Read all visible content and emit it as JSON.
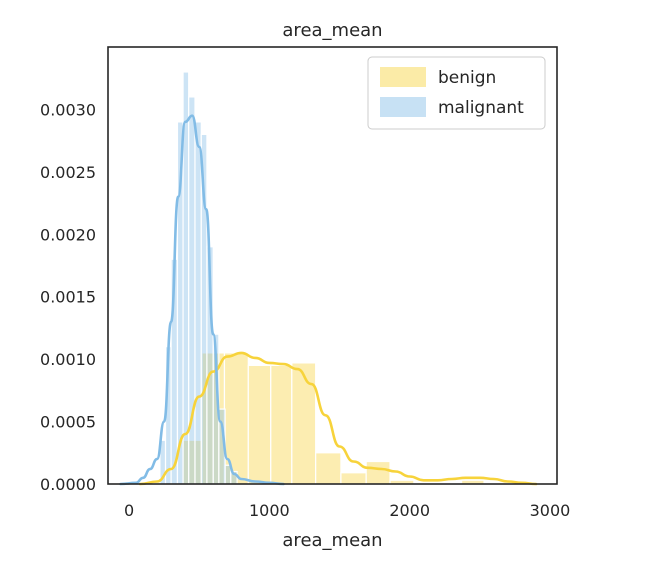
{
  "chart_data": {
    "type": "histogram-kde",
    "title": "area_mean",
    "xlabel": "area_mean",
    "ylabel": "",
    "xlim": [
      -150,
      3050
    ],
    "ylim": [
      0,
      0.0035
    ],
    "xticks": [
      0,
      1000,
      2000,
      3000
    ],
    "xtick_labels": [
      "0",
      "1000",
      "2000",
      "3000"
    ],
    "yticks": [
      0,
      0.0005,
      0.001,
      0.0015,
      0.002,
      0.0025,
      0.003
    ],
    "ytick_labels": [
      "0.0000",
      "0.0005",
      "0.0010",
      "0.0015",
      "0.0020",
      "0.0025",
      "0.0030"
    ],
    "grid": false,
    "legend_position": "upper right",
    "series": [
      {
        "name": "benign",
        "color": "#f7d33b",
        "bins": [
          {
            "x0": 380,
            "x1": 520,
            "density": 0.00035
          },
          {
            "x0": 520,
            "x1": 680,
            "density": 0.00105
          },
          {
            "x0": 680,
            "x1": 850,
            "density": 0.00105
          },
          {
            "x0": 850,
            "x1": 1010,
            "density": 0.00095
          },
          {
            "x0": 1010,
            "x1": 1160,
            "density": 0.00095
          },
          {
            "x0": 1160,
            "x1": 1330,
            "density": 0.00097
          },
          {
            "x0": 1330,
            "x1": 1510,
            "density": 0.00025
          },
          {
            "x0": 1510,
            "x1": 1690,
            "density": 9e-05
          },
          {
            "x0": 1690,
            "x1": 1860,
            "density": 0.00018
          },
          {
            "x0": 1860,
            "x1": 2030,
            "density": 3e-05
          },
          {
            "x0": 2370,
            "x1": 2530,
            "density": 3e-05
          }
        ],
        "kde": [
          [
            80,
            0
          ],
          [
            200,
            2e-05
          ],
          [
            300,
            0.00012
          ],
          [
            400,
            0.0004
          ],
          [
            500,
            0.0007
          ],
          [
            600,
            0.0009
          ],
          [
            700,
            0.00102
          ],
          [
            800,
            0.00105
          ],
          [
            900,
            0.00101
          ],
          [
            1000,
            0.00097
          ],
          [
            1100,
            0.00096
          ],
          [
            1200,
            0.00092
          ],
          [
            1300,
            0.0008
          ],
          [
            1400,
            0.00055
          ],
          [
            1500,
            0.0003
          ],
          [
            1600,
            0.00018
          ],
          [
            1700,
            0.00013
          ],
          [
            1800,
            0.00012
          ],
          [
            1900,
            0.0001
          ],
          [
            2000,
            6e-05
          ],
          [
            2100,
            3e-05
          ],
          [
            2200,
            3e-05
          ],
          [
            2300,
            4e-05
          ],
          [
            2400,
            5e-05
          ],
          [
            2500,
            5e-05
          ],
          [
            2600,
            4e-05
          ],
          [
            2700,
            2e-05
          ],
          [
            2800,
            1e-05
          ],
          [
            2900,
            0.0
          ]
        ]
      },
      {
        "name": "malignant",
        "color": "#82bce6",
        "bins": [
          {
            "x0": 220,
            "x1": 260,
            "density": 0.00035
          },
          {
            "x0": 260,
            "x1": 300,
            "density": 0.0011
          },
          {
            "x0": 300,
            "x1": 345,
            "density": 0.0018
          },
          {
            "x0": 345,
            "x1": 385,
            "density": 0.0029
          },
          {
            "x0": 385,
            "x1": 425,
            "density": 0.0033
          },
          {
            "x0": 425,
            "x1": 470,
            "density": 0.0031
          },
          {
            "x0": 470,
            "x1": 515,
            "density": 0.0029
          },
          {
            "x0": 515,
            "x1": 555,
            "density": 0.0028
          },
          {
            "x0": 555,
            "x1": 600,
            "density": 0.0019
          },
          {
            "x0": 600,
            "x1": 640,
            "density": 0.0012
          },
          {
            "x0": 640,
            "x1": 685,
            "density": 0.0006
          },
          {
            "x0": 685,
            "x1": 725,
            "density": 0.00015
          },
          {
            "x0": 725,
            "x1": 770,
            "density": 0.0001
          }
        ],
        "kde": [
          [
            -60,
            0
          ],
          [
            50,
            1e-05
          ],
          [
            100,
            5e-05
          ],
          [
            150,
            0.00012
          ],
          [
            200,
            0.0002
          ],
          [
            250,
            0.0005
          ],
          [
            300,
            0.0013
          ],
          [
            350,
            0.0023
          ],
          [
            400,
            0.0029
          ],
          [
            450,
            0.00295
          ],
          [
            500,
            0.0027
          ],
          [
            550,
            0.0022
          ],
          [
            600,
            0.0012
          ],
          [
            650,
            0.0005
          ],
          [
            700,
            0.0002
          ],
          [
            750,
            8e-05
          ],
          [
            800,
            4e-05
          ],
          [
            900,
            2e-05
          ],
          [
            1000,
            1e-05
          ],
          [
            1100,
            0
          ]
        ]
      }
    ]
  }
}
